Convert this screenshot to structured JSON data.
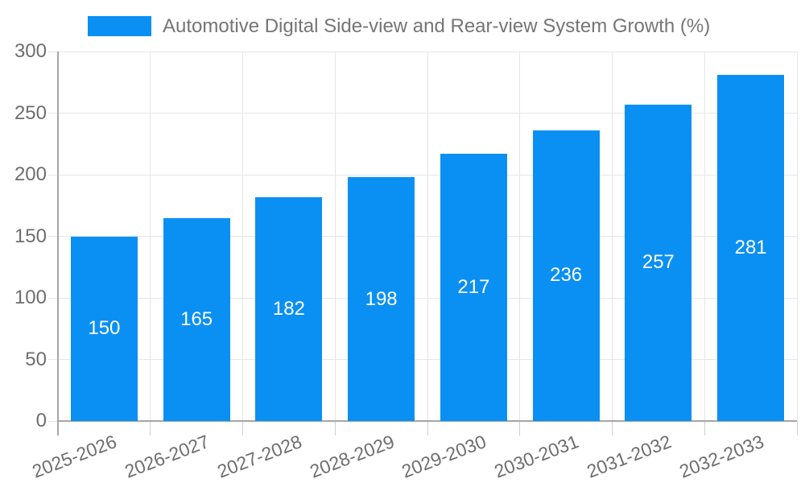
{
  "chart_data": {
    "type": "bar",
    "title": "",
    "legend": "Automotive Digital Side-view and Rear-view System Growth (%)",
    "legend_position": "top",
    "categories": [
      "2025-2026",
      "2026-2027",
      "2027-2028",
      "2028-2029",
      "2029-2030",
      "2030-2031",
      "2031-2032",
      "2032-2033"
    ],
    "series": [
      {
        "name": "Automotive Digital Side-view and Rear-view System Growth (%)",
        "values": [
          150,
          165,
          182,
          198,
          217,
          236,
          257,
          281
        ]
      }
    ],
    "bar_labels": [
      "150",
      "165",
      "182",
      "198",
      "217",
      "236",
      "257",
      "281"
    ],
    "xlabel": "",
    "ylabel": "",
    "ylim": [
      0,
      300
    ],
    "yticks": [
      0,
      50,
      100,
      150,
      200,
      250,
      300
    ],
    "grid": "on",
    "colors": {
      "bar": "#0a90f3",
      "bar_value_text": "#ffffff",
      "legend_text": "#757575",
      "tick_label_text": "#6e6e6e",
      "gridline": "#e6e6e6",
      "axis_line": "#a6a6a6",
      "tick_mark": "#cfcfcf",
      "background": "#ffffff"
    }
  }
}
